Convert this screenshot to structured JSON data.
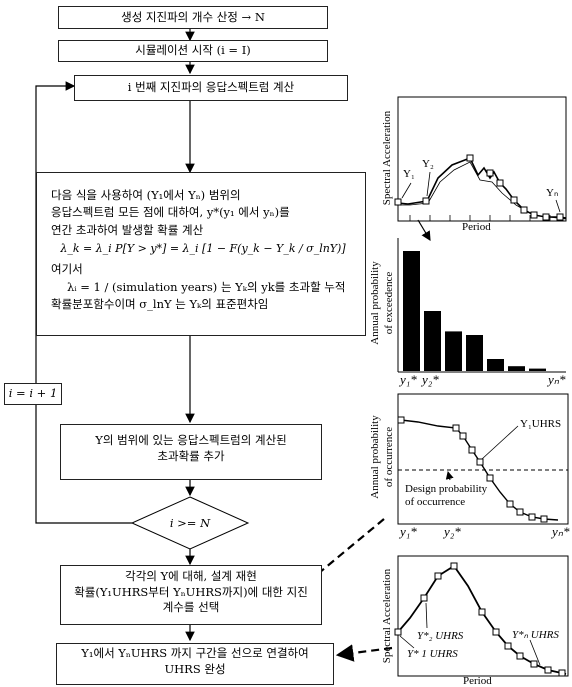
{
  "flow": {
    "step1": "생성 지진파의 개수 산정 → N",
    "step2": "시뮬레이션 시작 (i = I)",
    "step3": "i 번째 지진파의 응답스펙트럼 계산",
    "step4_line1": "다음 식을 사용하여 (Y₁에서 Yₙ) 범위의",
    "step4_line2": "응답스펙트럼 모든 점에 대하여, y*(y₁ 에서 yₙ)를",
    "step4_line3": "연간 초과하여  발생할 확률 계산",
    "step4_formula": "λ_k = λ_i P[Y > y*] = λ_i [1 − F(y_k − Y_k / σ_lnY)]",
    "step4_where": "여기서",
    "step4_def1": "λᵢ = 1 / (simulation years) 는 Yₖ의 yk를 초과할 누적",
    "step4_def2": "확률분포함수이며  σ_lnY 는 Yₖ의 표준편차임",
    "step5_line1": "Y의 범위에 있는 응답스펙트럼의 계산된",
    "step5_line2": "초과확률 추가",
    "decision": "i >= N",
    "loop": "i = i + 1",
    "step6_line1": "각각의 Y에 대해, 설계 재현",
    "step6_line2": "확률(Y₁UHRS부터 YₙUHRS까지)에 대한 지진",
    "step6_line3": "계수를 선택",
    "step7_line1": "Y₁에서 YₙUHRS 까지 구간을 선으로 연결하여",
    "step7_line2": "UHRS 완성"
  },
  "plots": {
    "p1": {
      "ylabel": "Spectral Acceleration",
      "xlabel": "Period",
      "labels": [
        "Y₁",
        "Y₂",
        "Yₙ"
      ]
    },
    "p2": {
      "ylabel_line1": "Annual probability",
      "ylabel_line2": "of exceedence",
      "xlabels": [
        "y₁*",
        "y₂*",
        "yₙ*"
      ],
      "bars": [
        1.0,
        0.5,
        0.33,
        0.3,
        0.1,
        0.04,
        0.02
      ]
    },
    "p3": {
      "ylabel_line1": "Annual probability",
      "ylabel_line2": "of occurrence",
      "curve_label": "Y₁UHRS",
      "design_line1": "Design probability",
      "design_line2": "of occurrence",
      "xlabels": [
        "y₁*",
        "y₂*",
        "yₙ*"
      ]
    },
    "p4": {
      "ylabel": "Spectral Acceleration",
      "xlabel": "Period",
      "labels": [
        "Y*₂ UHRS",
        "Y*ₙ UHRS",
        "Y* 1 UHRS"
      ]
    }
  }
}
